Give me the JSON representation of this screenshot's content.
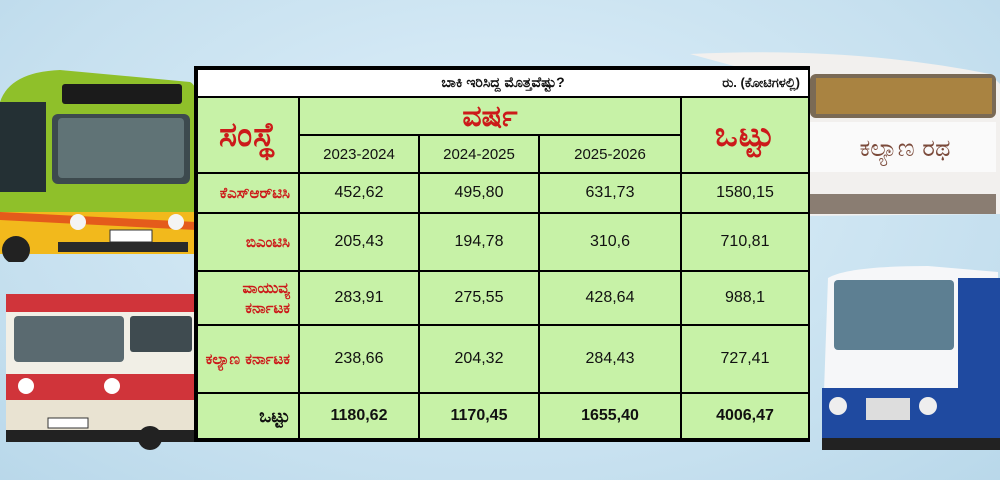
{
  "table": {
    "title": "ಬಾಕಿ ಇರಿಸಿದ್ದ ಮೊತ್ತವೆಷ್ಟು?",
    "unit": "ರು. (ಕೋಟಿಗಳಲ್ಲಿ)",
    "header_org": "ಸಂಸ್ಥೆ",
    "header_year": "ವರ್ಷ",
    "header_total": "ಒಟ್ಟು",
    "years": [
      "2023-2024",
      "2024-2025",
      "2025-2026"
    ],
    "rows": [
      {
        "org": "ಕೆಎಸ್‌ಆರ್‌ಟಿಸಿ",
        "values": [
          "452,62",
          "495,80",
          "631,73"
        ],
        "total": "1580,15"
      },
      {
        "org": "ಬಿಎಂಟಿಸಿ",
        "values": [
          "205,43",
          "194,78",
          "310,6"
        ],
        "total": "710,81"
      },
      {
        "org": "ವಾಯುವ್ಯ ಕರ್ನಾಟಕ",
        "values": [
          "283,91",
          "275,55",
          "428,64"
        ],
        "total": "988,1"
      },
      {
        "org": "ಕಲ್ಯಾಣ ಕರ್ನಾಟಕ",
        "values": [
          "238,66",
          "204,32",
          "284,43"
        ],
        "total": "727,41"
      }
    ],
    "total_row": {
      "label": "ಒಟ್ಟು",
      "values": [
        "1180,62",
        "1170,45",
        "1655,40"
      ],
      "total": "4006,47"
    }
  },
  "colors": {
    "table_bg": "#c7f2a7",
    "header_red": "#cc1a1a",
    "background": "#cfe6f3"
  }
}
